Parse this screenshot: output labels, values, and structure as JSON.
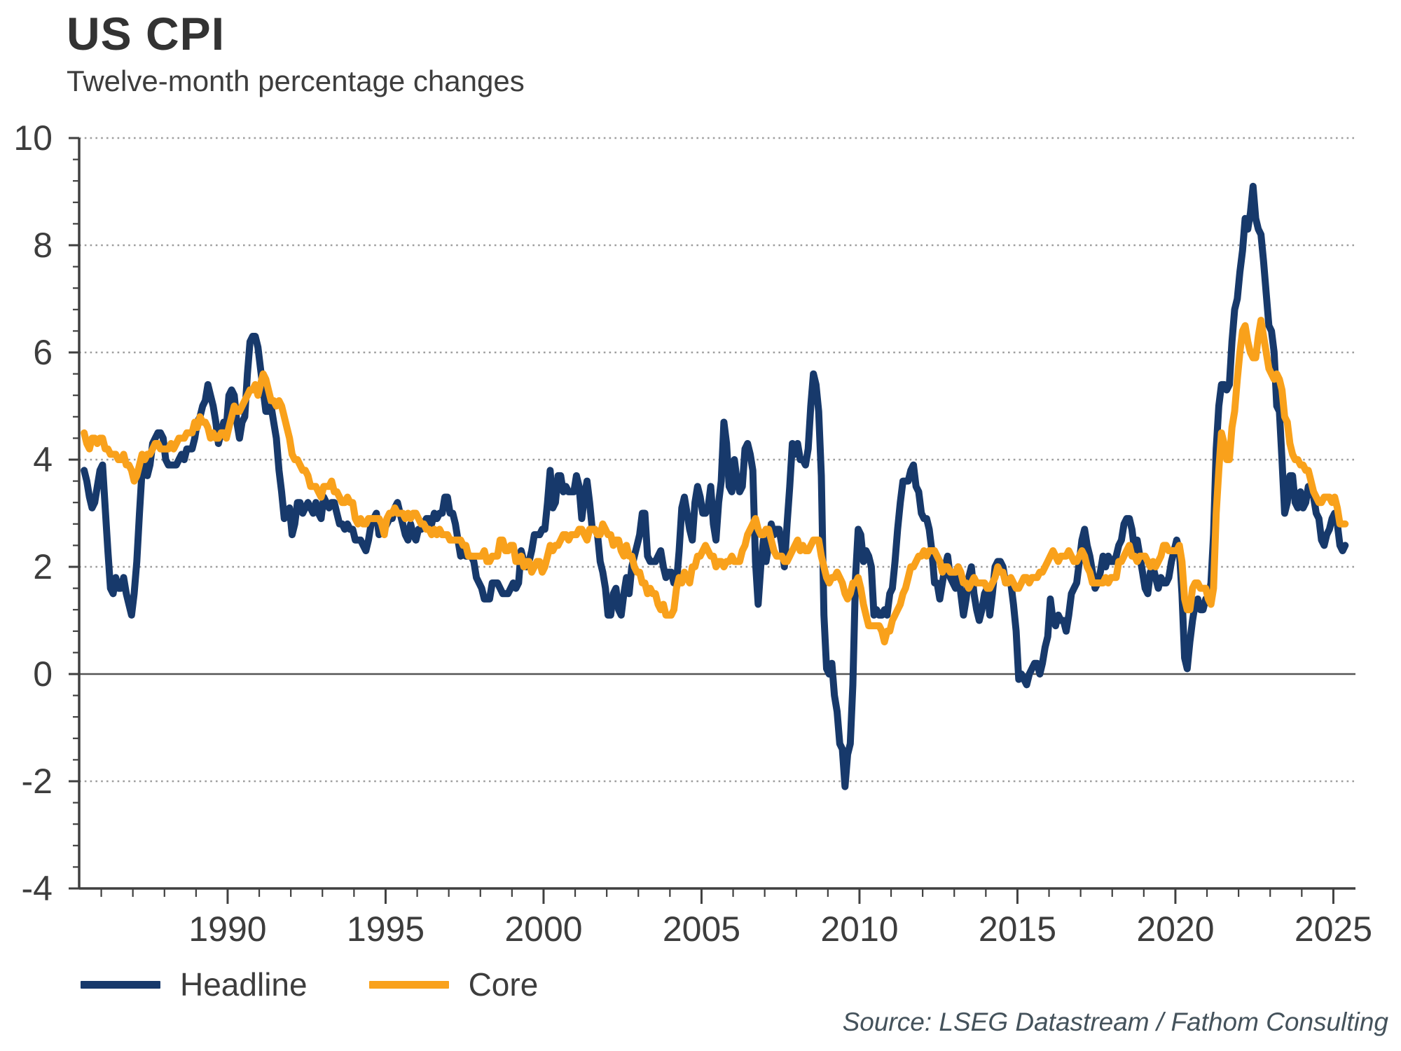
{
  "header": {
    "title": "US CPI",
    "subtitle": "Twelve-month percentage changes"
  },
  "footer": {
    "source": "Source: LSEG Datastream / Fathom Consulting"
  },
  "legend": {
    "items": [
      {
        "label": "Headline",
        "color": "#17396b"
      },
      {
        "label": "Core",
        "color": "#f9a11b"
      }
    ]
  },
  "colors": {
    "headline": "#17396b",
    "core": "#f9a11b",
    "axis": "#404040",
    "grid": "#9e9e9e",
    "zero_line": "#555555",
    "tick_label": "#3d3d3d"
  },
  "chart_data": {
    "type": "line",
    "title": "US CPI",
    "subtitle": "Twelve-month percentage changes",
    "ylabel": "",
    "xlabel": "",
    "ylim": [
      -4,
      10
    ],
    "xlim": [
      1985.3,
      2025.7
    ],
    "y_ticks": [
      -4,
      -2,
      0,
      2,
      4,
      6,
      8,
      10
    ],
    "y_minor_step": 0.4,
    "x_ticks": [
      1990,
      1995,
      2000,
      2005,
      2010,
      2015,
      2020,
      2025
    ],
    "x_minor_step": 1,
    "grid": "horizontal dotted at y ticks, solid line at 0",
    "legend_position": "bottom-left",
    "frequency": "monthly",
    "start": {
      "year": 1985,
      "month": 6
    },
    "end": {
      "year": 2025,
      "month": 5
    },
    "series": [
      {
        "name": "Headline",
        "color": "#17396b",
        "values": [
          3.8,
          3.6,
          3.3,
          3.1,
          3.2,
          3.5,
          3.8,
          3.9,
          3.1,
          2.3,
          1.6,
          1.5,
          1.8,
          1.6,
          1.6,
          1.8,
          1.5,
          1.3,
          1.1,
          1.5,
          2.1,
          3.0,
          3.8,
          3.9,
          3.7,
          3.9,
          4.3,
          4.4,
          4.5,
          4.5,
          4.4,
          4.0,
          3.9,
          3.9,
          3.9,
          3.9,
          4.0,
          4.1,
          4.0,
          4.2,
          4.2,
          4.2,
          4.4,
          4.7,
          4.8,
          5.0,
          5.1,
          5.4,
          5.2,
          5.0,
          4.7,
          4.3,
          4.5,
          4.7,
          4.6,
          5.2,
          5.3,
          5.2,
          4.7,
          4.4,
          4.7,
          4.8,
          5.6,
          6.2,
          6.3,
          6.3,
          6.1,
          5.7,
          5.3,
          4.9,
          4.9,
          5.0,
          4.7,
          4.4,
          3.8,
          3.4,
          2.9,
          3.0,
          3.1,
          2.6,
          2.8,
          3.2,
          3.2,
          3.0,
          3.1,
          3.2,
          3.1,
          3.0,
          3.2,
          3.0,
          2.9,
          3.3,
          3.2,
          3.1,
          3.2,
          3.2,
          3.0,
          2.8,
          2.8,
          2.7,
          2.8,
          2.7,
          2.7,
          2.5,
          2.5,
          2.5,
          2.4,
          2.3,
          2.5,
          2.8,
          2.9,
          3.0,
          2.6,
          2.7,
          2.7,
          2.8,
          2.9,
          2.9,
          3.1,
          3.2,
          3.0,
          2.8,
          2.6,
          2.5,
          2.8,
          2.6,
          2.5,
          2.7,
          2.7,
          2.8,
          2.9,
          2.9,
          2.8,
          3.0,
          2.9,
          3.0,
          3.0,
          3.3,
          3.3,
          3.0,
          3.0,
          2.8,
          2.5,
          2.2,
          2.3,
          2.2,
          2.2,
          2.2,
          2.1,
          1.8,
          1.7,
          1.6,
          1.4,
          1.4,
          1.4,
          1.7,
          1.7,
          1.7,
          1.6,
          1.5,
          1.5,
          1.5,
          1.6,
          1.7,
          1.6,
          1.7,
          2.3,
          2.1,
          2.0,
          2.1,
          2.3,
          2.6,
          2.6,
          2.6,
          2.7,
          2.7,
          3.2,
          3.8,
          3.1,
          3.2,
          3.7,
          3.7,
          3.4,
          3.5,
          3.4,
          3.4,
          3.4,
          3.7,
          3.5,
          2.9,
          3.3,
          3.6,
          3.2,
          2.7,
          2.7,
          2.6,
          2.1,
          1.9,
          1.6,
          1.1,
          1.1,
          1.5,
          1.6,
          1.2,
          1.1,
          1.5,
          1.8,
          1.5,
          2.0,
          2.2,
          2.4,
          2.6,
          3.0,
          3.0,
          2.2,
          2.1,
          2.1,
          2.1,
          2.2,
          2.3,
          2.0,
          1.8,
          1.9,
          1.9,
          1.7,
          1.7,
          2.3,
          3.1,
          3.3,
          3.0,
          2.7,
          2.5,
          3.2,
          3.5,
          3.3,
          3.0,
          3.0,
          3.1,
          3.5,
          2.8,
          2.5,
          3.2,
          3.6,
          4.7,
          4.3,
          3.5,
          3.4,
          4.0,
          3.6,
          3.4,
          3.5,
          4.2,
          4.3,
          4.1,
          3.8,
          2.1,
          1.3,
          2.0,
          2.5,
          2.1,
          2.4,
          2.8,
          2.6,
          2.7,
          2.7,
          2.4,
          2.0,
          2.8,
          3.5,
          4.3,
          4.1,
          4.3,
          4.0,
          4.0,
          3.9,
          4.2,
          5.0,
          5.6,
          5.4,
          4.9,
          3.7,
          1.1,
          0.1,
          0.0,
          0.2,
          -0.4,
          -0.7,
          -1.3,
          -1.4,
          -2.1,
          -1.5,
          -1.3,
          -0.2,
          1.8,
          2.7,
          2.6,
          2.1,
          2.3,
          2.2,
          2.0,
          1.1,
          1.2,
          1.1,
          1.1,
          1.2,
          1.1,
          1.5,
          1.6,
          2.1,
          2.7,
          3.2,
          3.6,
          3.6,
          3.6,
          3.8,
          3.9,
          3.5,
          3.4,
          3.0,
          2.9,
          2.9,
          2.7,
          2.3,
          1.7,
          1.7,
          1.4,
          1.7,
          2.0,
          2.2,
          1.8,
          1.7,
          1.6,
          2.0,
          1.5,
          1.1,
          1.4,
          1.8,
          2.0,
          1.5,
          1.2,
          1.0,
          1.2,
          1.5,
          1.6,
          1.1,
          1.5,
          2.0,
          2.1,
          2.1,
          2.0,
          1.7,
          1.7,
          1.7,
          1.3,
          0.8,
          -0.1,
          0.0,
          -0.1,
          -0.2,
          0.0,
          0.1,
          0.2,
          0.2,
          0.0,
          0.2,
          0.5,
          0.7,
          1.4,
          1.0,
          0.9,
          1.1,
          1.0,
          1.0,
          0.8,
          1.1,
          1.5,
          1.6,
          1.7,
          2.1,
          2.5,
          2.7,
          2.4,
          2.2,
          1.9,
          1.6,
          1.7,
          1.9,
          2.2,
          2.0,
          2.2,
          2.1,
          2.1,
          2.2,
          2.4,
          2.5,
          2.8,
          2.9,
          2.9,
          2.7,
          2.3,
          2.5,
          2.2,
          1.9,
          1.6,
          1.5,
          1.9,
          2.0,
          1.8,
          1.6,
          1.8,
          1.7,
          1.7,
          1.8,
          2.1,
          2.3,
          2.5,
          2.3,
          1.5,
          0.3,
          0.1,
          0.6,
          1.0,
          1.3,
          1.4,
          1.2,
          1.2,
          1.4,
          1.4,
          1.7,
          2.6,
          4.2,
          5.0,
          5.4,
          5.4,
          5.3,
          5.4,
          6.2,
          6.8,
          7.0,
          7.5,
          7.9,
          8.5,
          8.3,
          8.6,
          9.1,
          8.5,
          8.3,
          8.2,
          7.7,
          7.1,
          6.5,
          6.4,
          6.0,
          5.0,
          4.9,
          4.0,
          3.0,
          3.2,
          3.7,
          3.7,
          3.2,
          3.1,
          3.4,
          3.1,
          3.2,
          3.5,
          3.4,
          3.3,
          3.0,
          2.9,
          2.5,
          2.4,
          2.6,
          2.7,
          2.9,
          3.0,
          2.8,
          2.4,
          2.3,
          2.4
        ]
      },
      {
        "name": "Core",
        "color": "#f9a11b",
        "values": [
          4.5,
          4.3,
          4.2,
          4.4,
          4.4,
          4.3,
          4.4,
          4.4,
          4.2,
          4.2,
          4.1,
          4.1,
          4.1,
          4.0,
          4.0,
          4.1,
          3.9,
          3.9,
          3.8,
          3.6,
          3.7,
          3.9,
          4.1,
          4.0,
          4.1,
          4.1,
          4.2,
          4.3,
          4.3,
          4.2,
          4.2,
          4.2,
          4.2,
          4.3,
          4.2,
          4.3,
          4.4,
          4.4,
          4.4,
          4.5,
          4.5,
          4.5,
          4.7,
          4.6,
          4.8,
          4.7,
          4.7,
          4.6,
          4.4,
          4.5,
          4.4,
          4.4,
          4.5,
          4.5,
          4.4,
          4.6,
          4.8,
          5.0,
          4.9,
          4.9,
          5.0,
          5.1,
          5.2,
          5.3,
          5.3,
          5.4,
          5.2,
          5.4,
          5.6,
          5.5,
          5.3,
          5.1,
          5.1,
          5.0,
          5.1,
          5.0,
          4.8,
          4.6,
          4.4,
          4.1,
          4.0,
          4.0,
          3.9,
          3.8,
          3.8,
          3.7,
          3.5,
          3.5,
          3.5,
          3.4,
          3.3,
          3.5,
          3.5,
          3.5,
          3.6,
          3.4,
          3.4,
          3.3,
          3.2,
          3.2,
          3.3,
          3.2,
          3.2,
          2.9,
          2.8,
          2.9,
          2.8,
          2.8,
          2.9,
          2.9,
          2.9,
          2.9,
          2.9,
          2.8,
          2.6,
          2.9,
          3.0,
          3.0,
          3.1,
          3.0,
          3.0,
          3.0,
          2.9,
          3.0,
          2.9,
          3.0,
          3.0,
          2.9,
          2.8,
          2.8,
          2.7,
          2.7,
          2.6,
          2.7,
          2.6,
          2.7,
          2.6,
          2.6,
          2.6,
          2.5,
          2.5,
          2.5,
          2.5,
          2.5,
          2.4,
          2.4,
          2.2,
          2.2,
          2.2,
          2.2,
          2.2,
          2.2,
          2.3,
          2.1,
          2.1,
          2.2,
          2.2,
          2.2,
          2.5,
          2.5,
          2.3,
          2.3,
          2.4,
          2.4,
          2.1,
          2.1,
          2.2,
          2.0,
          2.1,
          2.1,
          1.9,
          2.0,
          2.1,
          2.1,
          1.9,
          2.0,
          2.2,
          2.4,
          2.3,
          2.4,
          2.4,
          2.5,
          2.6,
          2.6,
          2.5,
          2.6,
          2.6,
          2.6,
          2.7,
          2.7,
          2.6,
          2.5,
          2.7,
          2.7,
          2.7,
          2.6,
          2.6,
          2.8,
          2.7,
          2.6,
          2.6,
          2.4,
          2.5,
          2.5,
          2.3,
          2.2,
          2.4,
          2.2,
          2.2,
          2.0,
          1.9,
          1.9,
          1.7,
          1.7,
          1.5,
          1.6,
          1.5,
          1.5,
          1.3,
          1.2,
          1.3,
          1.1,
          1.1,
          1.1,
          1.2,
          1.6,
          1.8,
          1.7,
          1.9,
          1.8,
          1.7,
          2.0,
          2.0,
          2.2,
          2.2,
          2.3,
          2.4,
          2.3,
          2.2,
          2.2,
          2.0,
          2.1,
          2.1,
          2.0,
          2.1,
          2.1,
          2.2,
          2.1,
          2.1,
          2.1,
          2.3,
          2.4,
          2.6,
          2.7,
          2.8,
          2.9,
          2.7,
          2.6,
          2.6,
          2.7,
          2.7,
          2.5,
          2.3,
          2.2,
          2.2,
          2.2,
          2.1,
          2.1,
          2.2,
          2.3,
          2.4,
          2.5,
          2.3,
          2.4,
          2.3,
          2.3,
          2.4,
          2.5,
          2.5,
          2.5,
          2.2,
          2.0,
          1.8,
          1.7,
          1.8,
          1.8,
          1.9,
          1.8,
          1.7,
          1.5,
          1.4,
          1.5,
          1.7,
          1.7,
          1.8,
          1.6,
          1.3,
          1.1,
          0.9,
          0.9,
          0.9,
          0.9,
          0.9,
          0.8,
          0.6,
          0.8,
          0.8,
          1.0,
          1.1,
          1.2,
          1.3,
          1.5,
          1.6,
          1.8,
          2.0,
          2.0,
          2.1,
          2.2,
          2.2,
          2.3,
          2.2,
          2.3,
          2.3,
          2.3,
          2.2,
          2.1,
          1.9,
          2.0,
          2.0,
          1.9,
          1.9,
          1.9,
          2.0,
          1.9,
          1.7,
          1.7,
          1.6,
          1.7,
          1.8,
          1.7,
          1.7,
          1.7,
          1.7,
          1.6,
          1.6,
          1.7,
          1.8,
          2.0,
          1.9,
          1.9,
          1.7,
          1.7,
          1.8,
          1.7,
          1.6,
          1.6,
          1.7,
          1.8,
          1.8,
          1.7,
          1.8,
          1.8,
          1.8,
          1.9,
          1.9,
          2.0,
          2.1,
          2.2,
          2.3,
          2.2,
          2.1,
          2.2,
          2.2,
          2.2,
          2.3,
          2.2,
          2.1,
          2.1,
          2.2,
          2.3,
          2.2,
          2.0,
          1.9,
          1.7,
          1.7,
          1.7,
          1.7,
          1.7,
          1.8,
          1.7,
          1.8,
          1.8,
          1.8,
          2.1,
          2.1,
          2.2,
          2.3,
          2.4,
          2.2,
          2.2,
          2.1,
          2.2,
          2.2,
          2.2,
          2.1,
          2.0,
          2.1,
          2.0,
          2.1,
          2.2,
          2.4,
          2.4,
          2.3,
          2.3,
          2.3,
          2.3,
          2.4,
          2.1,
          1.4,
          1.2,
          1.2,
          1.6,
          1.7,
          1.7,
          1.6,
          1.6,
          1.6,
          1.4,
          1.3,
          1.6,
          3.0,
          3.8,
          4.5,
          4.3,
          4.0,
          4.0,
          4.6,
          4.9,
          5.5,
          6.0,
          6.4,
          6.5,
          6.2,
          6.0,
          5.9,
          5.9,
          6.3,
          6.6,
          6.3,
          6.0,
          5.7,
          5.6,
          5.5,
          5.6,
          5.5,
          5.3,
          4.8,
          4.7,
          4.3,
          4.1,
          4.0,
          4.0,
          3.9,
          3.9,
          3.8,
          3.8,
          3.6,
          3.4,
          3.3,
          3.2,
          3.2,
          3.3,
          3.3,
          3.3,
          3.2,
          3.3,
          3.1,
          2.8,
          2.8,
          2.8
        ]
      }
    ]
  }
}
